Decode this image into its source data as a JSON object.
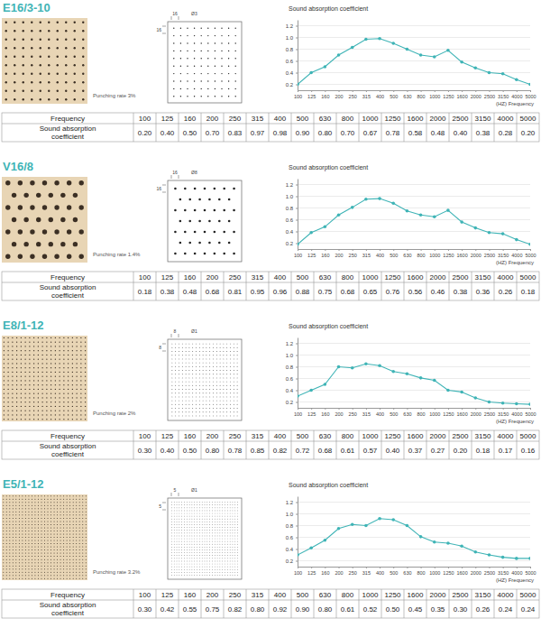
{
  "chart_data": [
    {
      "type": "line",
      "title": "E16/3-10",
      "annotation": "Punching rate 3%",
      "diagram_labels": [
        "16",
        "16",
        "Ø3"
      ],
      "ylabel": "Sound absorption coefficient",
      "xlabel": "(HZ) Frequency",
      "table_row_labels": [
        "Frequency",
        "Sound absorption coefficient"
      ],
      "categories": [
        "100",
        "125",
        "160",
        "200",
        "250",
        "315",
        "400",
        "500",
        "630",
        "800",
        "1000",
        "1250",
        "1600",
        "2000",
        "2500",
        "3150",
        "4000",
        "5000"
      ],
      "values": [
        0.2,
        0.4,
        0.5,
        0.7,
        0.83,
        0.97,
        0.98,
        0.9,
        0.8,
        0.7,
        0.67,
        0.78,
        0.58,
        0.48,
        0.4,
        0.38,
        0.28,
        0.2
      ],
      "value_labels": [
        "0.20",
        "0.40",
        "0.50",
        "0.70",
        "0.83",
        "0.97",
        "0.98",
        "0.90",
        "0.80",
        "0.70",
        "0.67",
        "0.78",
        "0.58",
        "0.48",
        "0.40",
        "0.38",
        "0.28",
        "0.20"
      ],
      "ylim": [
        0.1,
        1.3
      ],
      "yticks": [
        0.2,
        0.4,
        0.6,
        0.8,
        {
          "value": 1,
          "label": "1.0"
        },
        1.2
      ],
      "grid": true,
      "color": "#3fb4b6",
      "marker": "circle",
      "line_style": "solid"
    },
    {
      "type": "line",
      "title": "V16/8",
      "annotation": "Punching rate 1.4%",
      "diagram_labels": [
        "16",
        "16",
        "Ø8"
      ],
      "ylabel": "Sound absorption coefficient",
      "xlabel": "(HZ) Frequency",
      "table_row_labels": [
        "Frequency",
        "Sound absorption coefficient"
      ],
      "categories": [
        "100",
        "125",
        "160",
        "200",
        "250",
        "315",
        "400",
        "500",
        "630",
        "800",
        "1000",
        "1250",
        "1600",
        "2000",
        "2500",
        "3150",
        "4000",
        "5000"
      ],
      "values": [
        0.18,
        0.38,
        0.48,
        0.68,
        0.81,
        0.95,
        0.96,
        0.88,
        0.75,
        0.68,
        0.65,
        0.76,
        0.56,
        0.46,
        0.38,
        0.36,
        0.26,
        0.18
      ],
      "value_labels": [
        "0.18",
        "0.38",
        "0.48",
        "0.68",
        "0.81",
        "0.95",
        "0.96",
        "0.88",
        "0.75",
        "0.68",
        "0.65",
        "0.76",
        "0.56",
        "0.46",
        "0.38",
        "0.36",
        "0.26",
        "0.18"
      ],
      "ylim": [
        0.1,
        1.3
      ],
      "yticks": [
        0.2,
        0.4,
        0.6,
        0.8,
        {
          "value": 1,
          "label": "1.0"
        },
        1.2
      ],
      "grid": true,
      "color": "#3fb4b6",
      "marker": "circle",
      "line_style": "solid"
    },
    {
      "type": "line",
      "title": "E8/1-12",
      "annotation": "Punching rate 2%",
      "diagram_labels": [
        "8",
        "8",
        "Ø1"
      ],
      "ylabel": "Sound absorption coefficient",
      "xlabel": "(HZ) Frequency",
      "table_row_labels": [
        "Frequency",
        "Sound absorption coefficient"
      ],
      "categories": [
        "100",
        "125",
        "160",
        "200",
        "250",
        "315",
        "400",
        "500",
        "630",
        "800",
        "1000",
        "1250",
        "1600",
        "2000",
        "2500",
        "3150",
        "4000",
        "5000"
      ],
      "values": [
        0.3,
        0.4,
        0.5,
        0.8,
        0.78,
        0.85,
        0.82,
        0.72,
        0.68,
        0.61,
        0.57,
        0.4,
        0.37,
        0.27,
        0.2,
        0.18,
        0.17,
        0.16
      ],
      "value_labels": [
        "0.30",
        "0.40",
        "0.50",
        "0.80",
        "0.78",
        "0.85",
        "0.82",
        "0.72",
        "0.68",
        "0.61",
        "0.57",
        "0.40",
        "0.37",
        "0.27",
        "0.20",
        "0.18",
        "0.17",
        "0.16"
      ],
      "ylim": [
        0.1,
        1.3
      ],
      "yticks": [
        0.2,
        0.4,
        0.6,
        0.8,
        {
          "value": 1,
          "label": "1.0"
        },
        1.2
      ],
      "grid": true,
      "color": "#3fb4b6",
      "marker": "circle",
      "line_style": "solid"
    },
    {
      "type": "line",
      "title": "E5/1-12",
      "annotation": "Punching rate 3.2%",
      "diagram_labels": [
        "5",
        "5",
        "Ø1"
      ],
      "ylabel": "Sound absorption coefficient",
      "xlabel": "(HZ) Frequency",
      "table_row_labels": [
        "Frequency",
        "Sound absorption coefficient"
      ],
      "categories": [
        "100",
        "125",
        "160",
        "200",
        "250",
        "315",
        "400",
        "500",
        "630",
        "800",
        "1000",
        "1250",
        "1600",
        "2000",
        "2500",
        "3150",
        "4000",
        "5000"
      ],
      "values": [
        0.3,
        0.42,
        0.55,
        0.75,
        0.82,
        0.8,
        0.92,
        0.9,
        0.8,
        0.61,
        0.52,
        0.5,
        0.45,
        0.35,
        0.3,
        0.26,
        0.24,
        0.24
      ],
      "value_labels": [
        "0.30",
        "0.42",
        "0.55",
        "0.75",
        "0.82",
        "0.80",
        "0.92",
        "0.90",
        "0.80",
        "0.61",
        "0.52",
        "0.50",
        "0.45",
        "0.35",
        "0.30",
        "0.26",
        "0.24",
        "0.24"
      ],
      "ylim": [
        0.1,
        1.3
      ],
      "yticks": [
        0.2,
        0.4,
        0.6,
        0.8,
        {
          "value": 1,
          "label": "1.0"
        },
        1.2
      ],
      "grid": true,
      "color": "#3fb4b6",
      "marker": "circle",
      "line_style": "solid"
    }
  ]
}
